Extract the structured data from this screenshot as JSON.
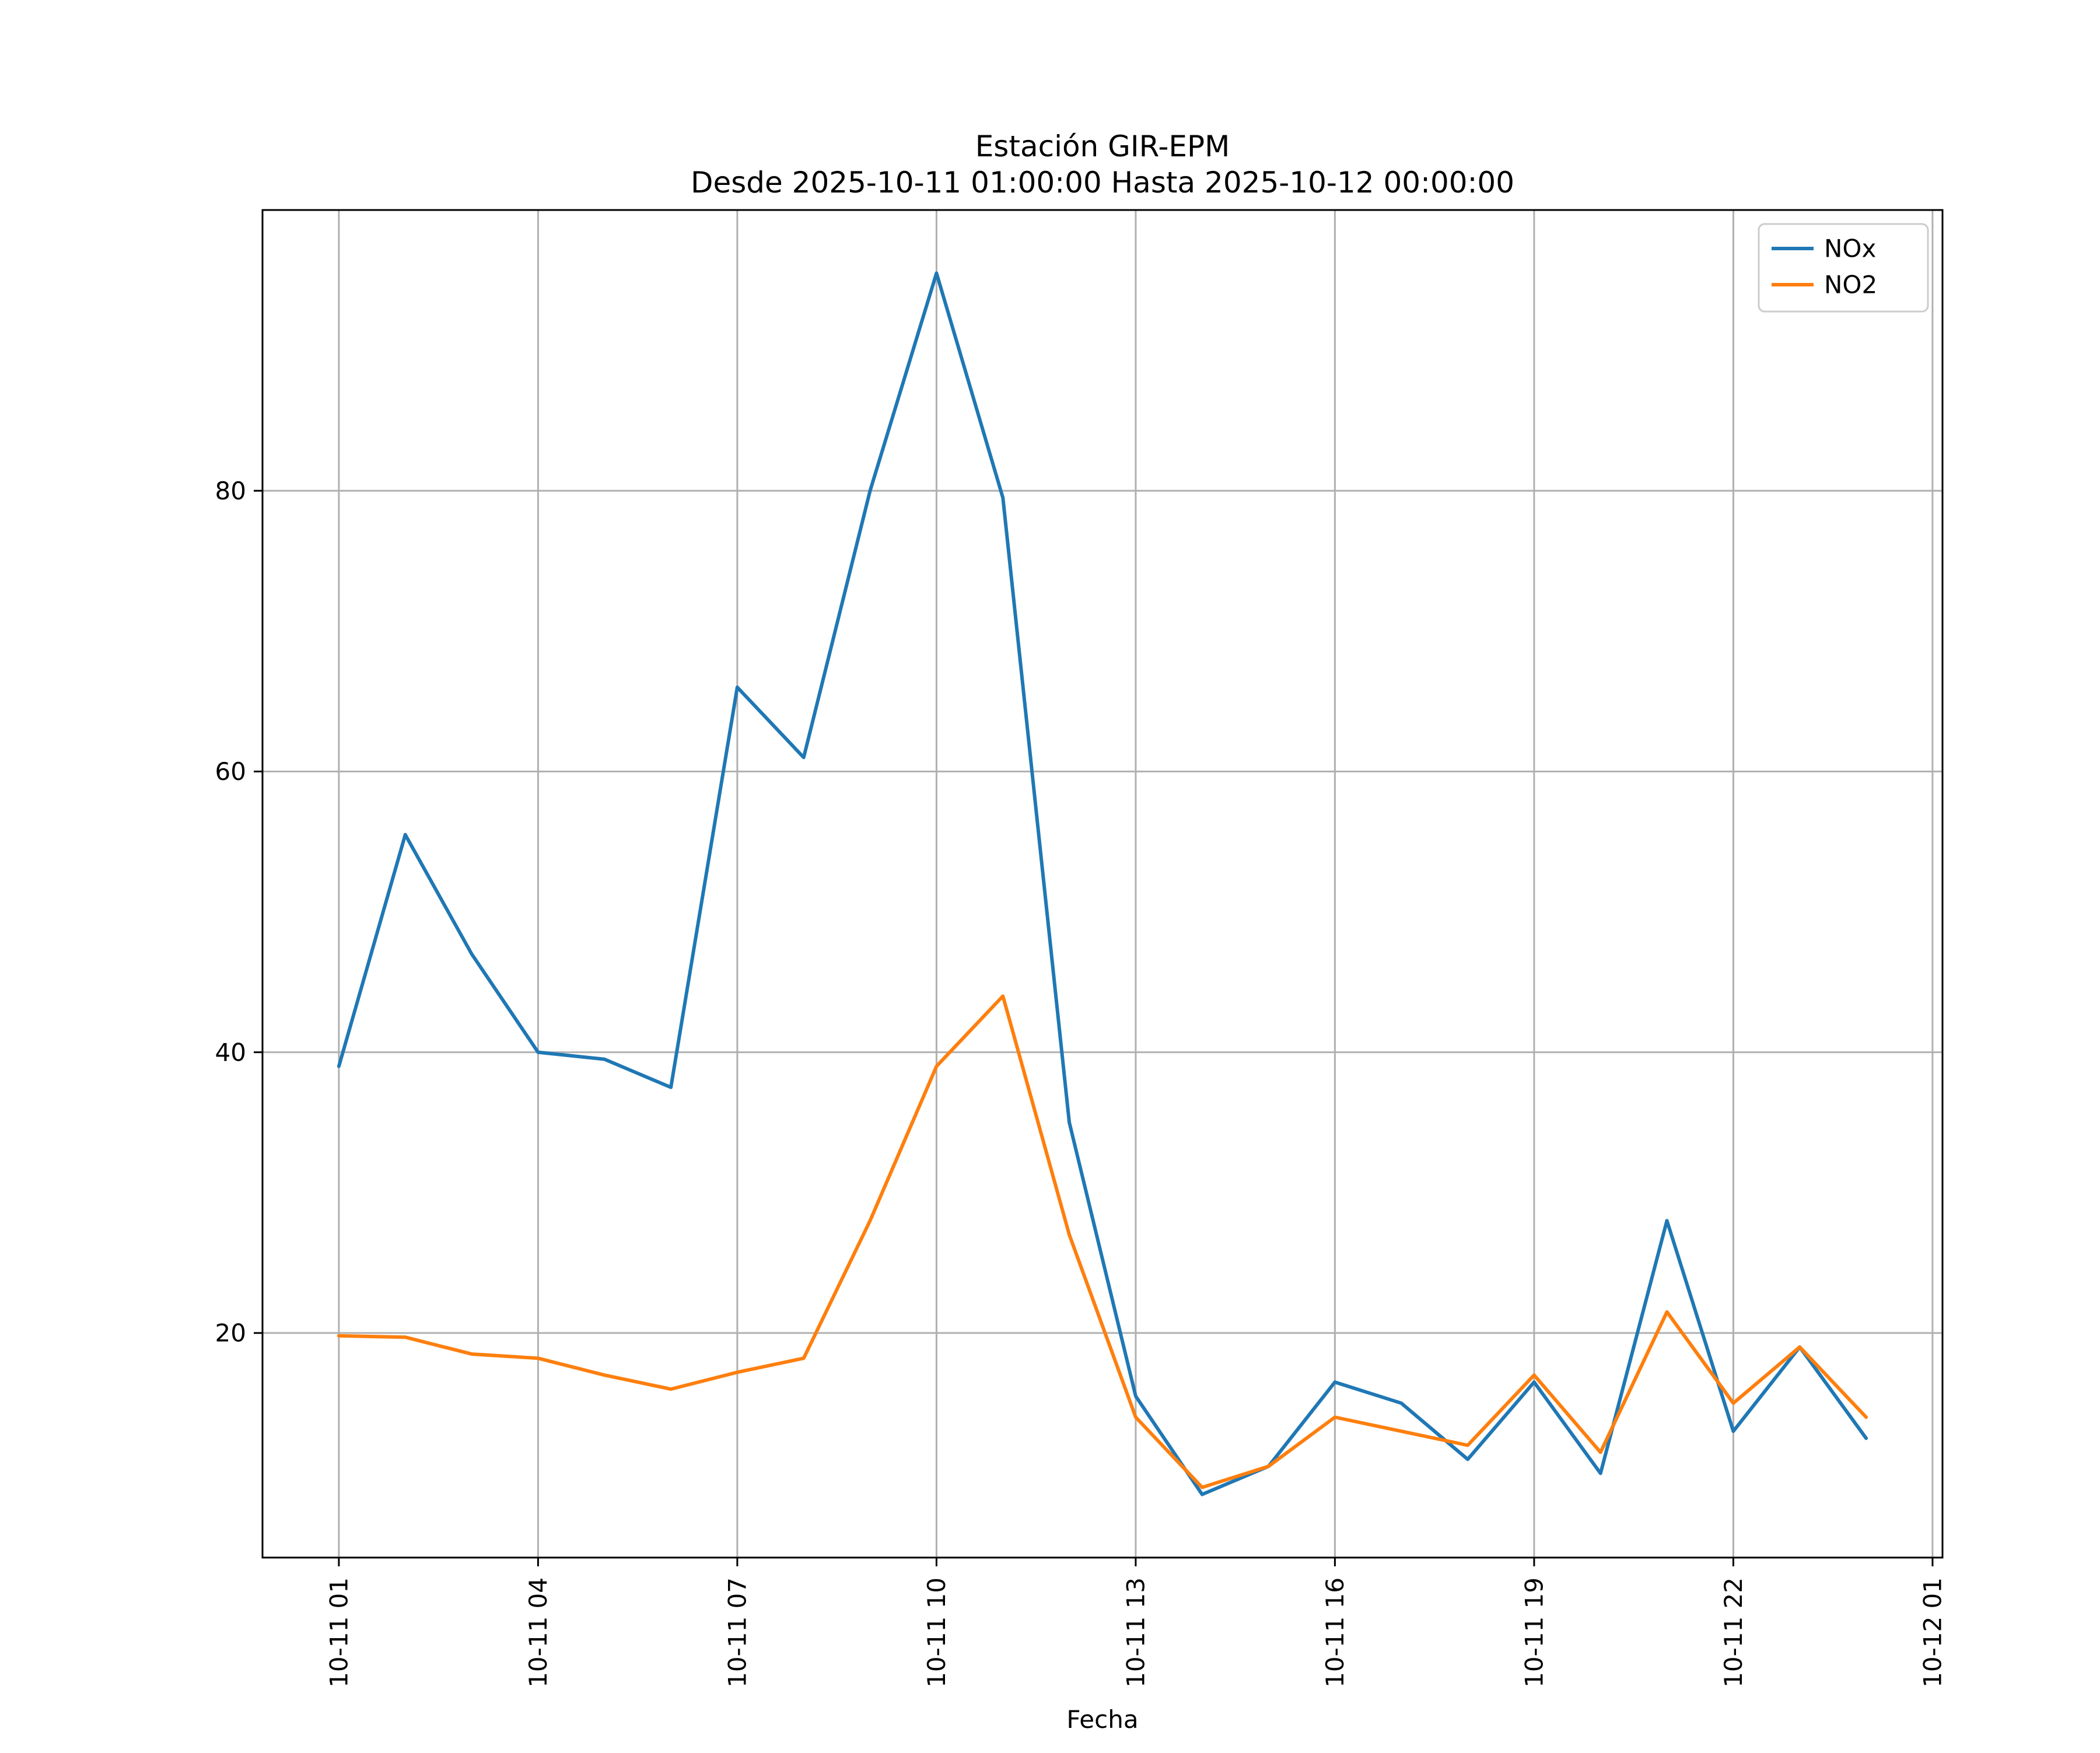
{
  "header": {
    "title": "Estación GIR-EPM",
    "subtitle": "Desde 2025-10-11 01:00:00 Hasta 2025-10-12 00:00:00"
  },
  "colors": {
    "nox": "#1f77b4",
    "no2": "#ff7f0e",
    "grid": "#b0b0b0",
    "axis": "#000000",
    "legend_border": "#cccccc",
    "background": "#ffffff"
  },
  "chart_data": {
    "type": "line",
    "title": "Estación GIR-EPM",
    "subtitle": "Desde 2025-10-11 01:00:00 Hasta 2025-10-12 00:00:00",
    "xlabel": "Fecha",
    "ylabel": "",
    "x": [
      1,
      2,
      3,
      4,
      5,
      6,
      7,
      8,
      9,
      10,
      11,
      12,
      13,
      14,
      15,
      16,
      17,
      18,
      19,
      20,
      21,
      22,
      23,
      24
    ],
    "series": [
      {
        "name": "NOx",
        "color": "#1f77b4",
        "values": [
          39,
          55.5,
          47,
          40,
          39.5,
          37.5,
          66,
          61,
          80,
          95.5,
          79.5,
          35,
          15.5,
          8.5,
          10.5,
          16.5,
          15,
          11,
          16.5,
          10,
          28,
          13,
          19,
          12.5
        ]
      },
      {
        "name": "NO2",
        "color": "#ff7f0e",
        "values": [
          19.8,
          19.7,
          18.5,
          18.2,
          17,
          16,
          17.2,
          18.2,
          28,
          39,
          44,
          27,
          14,
          9,
          10.5,
          14,
          13,
          12,
          17,
          11.5,
          21.5,
          15,
          19,
          14
        ]
      }
    ],
    "xticks": [
      {
        "pos": 1,
        "label": "10-11 01"
      },
      {
        "pos": 4,
        "label": "10-11 04"
      },
      {
        "pos": 7,
        "label": "10-11 07"
      },
      {
        "pos": 10,
        "label": "10-11 10"
      },
      {
        "pos": 13,
        "label": "10-11 13"
      },
      {
        "pos": 16,
        "label": "10-11 16"
      },
      {
        "pos": 19,
        "label": "10-11 19"
      },
      {
        "pos": 22,
        "label": "10-11 22"
      },
      {
        "pos": 25,
        "label": "10-12 01"
      }
    ],
    "yticks": [
      20,
      40,
      60,
      80
    ],
    "xlim": [
      -0.15,
      25.15
    ],
    "ylim": [
      4,
      100
    ],
    "grid": true,
    "legend": {
      "position": "upper-right",
      "entries": [
        "NOx",
        "NO2"
      ]
    }
  }
}
